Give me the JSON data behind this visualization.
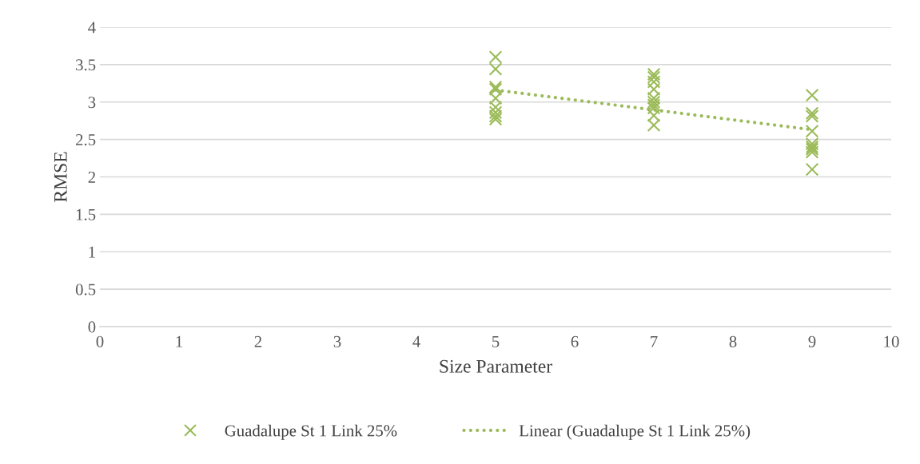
{
  "chart_data": {
    "type": "scatter",
    "xlabel": "Size Parameter",
    "ylabel": "RMSE",
    "xlim": [
      0,
      10
    ],
    "xticks": [
      0,
      1,
      2,
      3,
      4,
      5,
      6,
      7,
      8,
      9,
      10
    ],
    "ylim": [
      0,
      4
    ],
    "yticks": [
      0,
      0.5,
      1,
      1.5,
      2,
      2.5,
      3,
      3.5,
      4
    ],
    "grid": "y",
    "legend": "bottom",
    "series": [
      {
        "name": "Guadalupe St 1 Link 25%",
        "marker": "cross",
        "color": "#9bbb59",
        "x": [
          5,
          5,
          5,
          5,
          5,
          5,
          5,
          5,
          5,
          7,
          7,
          7,
          7,
          7,
          7,
          7,
          7,
          7,
          7,
          9,
          9,
          9,
          9,
          9,
          9,
          9,
          9,
          9
        ],
        "values": [
          3.6,
          3.44,
          3.2,
          3.17,
          3.05,
          2.93,
          2.86,
          2.81,
          2.77,
          3.37,
          3.33,
          3.27,
          3.17,
          3.05,
          3.0,
          2.96,
          2.92,
          2.82,
          2.69,
          3.09,
          2.85,
          2.81,
          2.61,
          2.44,
          2.4,
          2.37,
          2.33,
          2.1
        ]
      },
      {
        "name": "Linear (Guadalupe St 1 Link 25%)",
        "type": "line",
        "line_style": "dotted",
        "marker": "none",
        "color": "#9bbb59",
        "x": [
          5,
          9
        ],
        "values": [
          3.16,
          2.63
        ]
      }
    ]
  }
}
